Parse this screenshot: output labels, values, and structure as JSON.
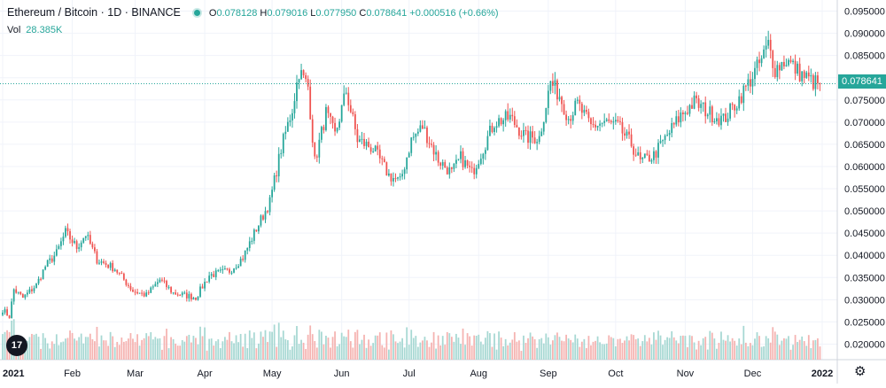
{
  "header": {
    "symbol_title": "Ethereum / Bitcoin · 1D · BINANCE",
    "ohlc": {
      "o_label": "O",
      "o": "0.078128",
      "h_label": "H",
      "h": "0.079016",
      "l_label": "L",
      "l": "0.077950",
      "c_label": "C",
      "c": "0.078641",
      "change": "+0.000516 (+0.66%)"
    },
    "volume_label": "Vol",
    "volume_value": "28.385K"
  },
  "last_price_tag": "0.078641",
  "colors": {
    "up": "#26a69a",
    "down": "#ef5350",
    "up_vol": "#a7d8d3",
    "down_vol": "#f5b3b1",
    "grid": "#f0f3fa",
    "axis_text": "#131722"
  },
  "icons": {
    "logo": "tradingview-logo-icon",
    "settings": "gear-icon"
  },
  "logo_text": "17",
  "chart_data": {
    "type": "candlestick",
    "title": "Ethereum / Bitcoin · 1D · BINANCE",
    "y_ticks": [
      "0.095000",
      "0.090000",
      "0.085000",
      "0.080000",
      "0.075000",
      "0.070000",
      "0.065000",
      "0.060000",
      "0.055000",
      "0.050000",
      "0.045000",
      "0.040000",
      "0.035000",
      "0.030000",
      "0.025000",
      "0.020000"
    ],
    "ylim": [
      0.0165,
      0.0965
    ],
    "x_ticks": [
      "2021",
      "Feb",
      "Mar",
      "Apr",
      "May",
      "Jun",
      "Jul",
      "Aug",
      "Sep",
      "Oct",
      "Nov",
      "Dec",
      "2022"
    ],
    "x_range": [
      "2021-01-01",
      "2022-01-01"
    ],
    "last_close": 0.078641,
    "anchors": [
      [
        "2021-01-01",
        0.0278
      ],
      [
        "2021-01-04",
        0.0262
      ],
      [
        "2021-01-06",
        0.0323
      ],
      [
        "2021-01-10",
        0.0304
      ],
      [
        "2021-01-16",
        0.0333
      ],
      [
        "2021-01-20",
        0.0375
      ],
      [
        "2021-01-25",
        0.0405
      ],
      [
        "2021-01-29",
        0.0452
      ],
      [
        "2021-02-03",
        0.0418
      ],
      [
        "2021-02-07",
        0.0448
      ],
      [
        "2021-02-12",
        0.039
      ],
      [
        "2021-02-20",
        0.037
      ],
      [
        "2021-02-28",
        0.032
      ],
      [
        "2021-03-06",
        0.031
      ],
      [
        "2021-03-12",
        0.0345
      ],
      [
        "2021-03-18",
        0.0315
      ],
      [
        "2021-03-28",
        0.0305
      ],
      [
        "2021-04-03",
        0.0355
      ],
      [
        "2021-04-12",
        0.0365
      ],
      [
        "2021-04-18",
        0.0395
      ],
      [
        "2021-04-24",
        0.046
      ],
      [
        "2021-04-30",
        0.052
      ],
      [
        "2021-05-05",
        0.064
      ],
      [
        "2021-05-10",
        0.073
      ],
      [
        "2021-05-13",
        0.0815
      ],
      [
        "2021-05-17",
        0.078
      ],
      [
        "2021-05-20",
        0.061
      ],
      [
        "2021-05-25",
        0.072
      ],
      [
        "2021-05-29",
        0.067
      ],
      [
        "2021-06-03",
        0.077
      ],
      [
        "2021-06-08",
        0.066
      ],
      [
        "2021-06-15",
        0.064
      ],
      [
        "2021-06-22",
        0.058
      ],
      [
        "2021-06-27",
        0.0565
      ],
      [
        "2021-07-02",
        0.066
      ],
      [
        "2021-07-07",
        0.069
      ],
      [
        "2021-07-14",
        0.0615
      ],
      [
        "2021-07-20",
        0.0585
      ],
      [
        "2021-07-24",
        0.062
      ],
      [
        "2021-07-29",
        0.0585
      ],
      [
        "2021-08-02",
        0.063
      ],
      [
        "2021-08-08",
        0.07
      ],
      [
        "2021-08-15",
        0.071
      ],
      [
        "2021-08-22",
        0.0665
      ],
      [
        "2021-08-28",
        0.0665
      ],
      [
        "2021-09-02",
        0.079
      ],
      [
        "2021-09-06",
        0.076
      ],
      [
        "2021-09-10",
        0.071
      ],
      [
        "2021-09-14",
        0.074
      ],
      [
        "2021-09-20",
        0.069
      ],
      [
        "2021-09-26",
        0.07
      ],
      [
        "2021-10-02",
        0.069
      ],
      [
        "2021-10-08",
        0.065
      ],
      [
        "2021-10-12",
        0.061
      ],
      [
        "2021-10-18",
        0.0625
      ],
      [
        "2021-10-24",
        0.067
      ],
      [
        "2021-10-30",
        0.0715
      ],
      [
        "2021-11-05",
        0.0745
      ],
      [
        "2021-11-12",
        0.072
      ],
      [
        "2021-11-18",
        0.0705
      ],
      [
        "2021-11-24",
        0.0745
      ],
      [
        "2021-11-30",
        0.0795
      ],
      [
        "2021-12-05",
        0.084
      ],
      [
        "2021-12-08",
        0.0875
      ],
      [
        "2021-12-11",
        0.082
      ],
      [
        "2021-12-16",
        0.084
      ],
      [
        "2021-12-22",
        0.081
      ],
      [
        "2021-12-28",
        0.079
      ],
      [
        "2021-12-31",
        0.0786
      ]
    ]
  }
}
